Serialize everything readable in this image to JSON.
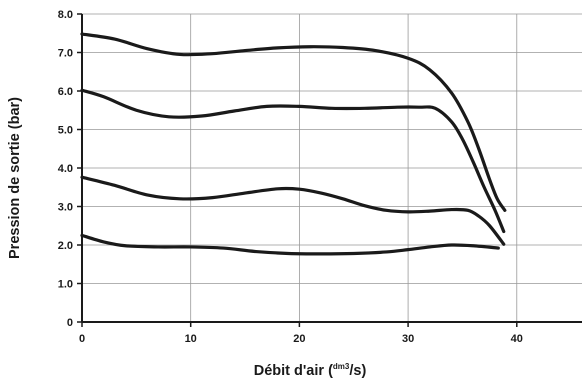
{
  "chart_data": {
    "type": "line",
    "ylabel": "Pression de sortie (bar)",
    "xlabel": {
      "prefix": "Débit d'air (",
      "sup": "dm3",
      "suffix": "/s)"
    },
    "xlim": [
      0,
      46
    ],
    "ylim": [
      0,
      8
    ],
    "x_ticks": [
      0,
      10,
      20,
      30,
      40
    ],
    "x_tick_labels": [
      "0",
      "10",
      "20",
      "30",
      "40"
    ],
    "y_ticks": [
      0,
      1,
      2,
      3,
      4,
      5,
      6,
      7,
      8
    ],
    "y_tick_labels": [
      "0",
      "1.0",
      "2.0",
      "3.0",
      "4.0",
      "5.0",
      "6.0",
      "7.0",
      "8.0"
    ],
    "grid": true,
    "line_color": "#1a1a1a",
    "grid_color": "#999999",
    "series": [
      {
        "x": [
          0,
          3,
          6,
          9,
          12,
          15,
          18,
          21,
          24,
          27,
          30,
          32,
          34,
          35.5,
          36.5,
          37.5,
          38.2,
          38.9
        ],
        "y": [
          7.48,
          7.35,
          7.1,
          6.95,
          6.97,
          7.05,
          7.12,
          7.15,
          7.13,
          7.05,
          6.85,
          6.55,
          5.95,
          5.2,
          4.5,
          3.7,
          3.2,
          2.9
        ]
      },
      {
        "x": [
          0,
          2,
          5,
          8,
          11,
          14,
          17,
          20,
          23,
          26,
          29,
          31,
          32.5,
          34,
          35,
          36,
          37,
          38,
          38.8
        ],
        "y": [
          6.02,
          5.85,
          5.5,
          5.33,
          5.35,
          5.48,
          5.6,
          5.6,
          5.55,
          5.55,
          5.58,
          5.58,
          5.55,
          5.2,
          4.75,
          4.15,
          3.5,
          2.9,
          2.35
        ]
      },
      {
        "x": [
          0,
          3,
          6,
          9,
          12,
          15,
          18,
          20,
          22,
          24,
          26,
          28,
          30,
          32,
          34,
          35.5,
          36.5,
          37.5,
          38.8
        ],
        "y": [
          3.76,
          3.55,
          3.3,
          3.2,
          3.23,
          3.35,
          3.46,
          3.45,
          3.35,
          3.2,
          3.02,
          2.9,
          2.86,
          2.88,
          2.92,
          2.9,
          2.75,
          2.5,
          2.02
        ]
      },
      {
        "x": [
          0,
          2,
          4,
          7,
          10,
          13,
          16,
          19,
          22,
          25,
          28,
          30,
          32,
          34,
          36,
          38.3
        ],
        "y": [
          2.25,
          2.08,
          1.98,
          1.95,
          1.95,
          1.92,
          1.83,
          1.78,
          1.77,
          1.78,
          1.82,
          1.88,
          1.95,
          2.0,
          1.98,
          1.92
        ]
      }
    ]
  }
}
